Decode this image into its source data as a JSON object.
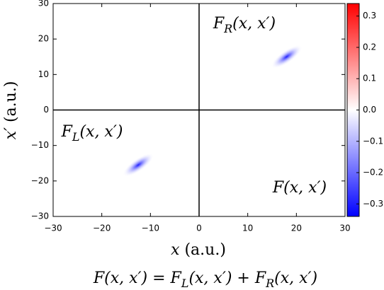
{
  "chart_data": {
    "type": "heatmap",
    "xlabel": [
      "x",
      {
        "roman": " (a.u.)"
      }
    ],
    "ylabel": [
      "x′",
      {
        "roman": " (a.u.)"
      }
    ],
    "caption": [
      "F(x, x′) = F",
      {
        "sub": "L"
      },
      "(x, x′) + F",
      {
        "sub": "R"
      },
      "(x, x′)"
    ],
    "annotations": [
      {
        "parts": [
          "F",
          {
            "sub": "R"
          },
          "(x, x′)"
        ]
      },
      {
        "parts": [
          "F",
          {
            "sub": "L"
          },
          "(x, x′)"
        ]
      },
      {
        "parts": [
          "F(x, x′)"
        ]
      }
    ],
    "blobs": [
      {
        "x": 18,
        "y": 15,
        "value": -0.3
      },
      {
        "x": -12.5,
        "y": -15.5,
        "value": -0.3
      }
    ],
    "xlim": [
      -30,
      30
    ],
    "ylim": [
      -30,
      30
    ],
    "xticks": [
      {
        "value": -30,
        "label": "−30"
      },
      {
        "value": -20,
        "label": "−20"
      },
      {
        "value": -10,
        "label": "−10"
      },
      0,
      10,
      20,
      30
    ],
    "yticks": [
      {
        "value": -30,
        "label": "−30"
      },
      {
        "value": -20,
        "label": "−20"
      },
      {
        "value": -10,
        "label": "−10"
      },
      0,
      10,
      20,
      30
    ],
    "clim": [
      -0.34,
      0.34
    ],
    "cticks": [
      {
        "value": -0.3,
        "label": "−0.3"
      },
      {
        "value": -0.2,
        "label": "−0.2"
      },
      {
        "value": -0.1,
        "label": "−0.1"
      },
      {
        "value": 0,
        "label": "0.0"
      },
      0.1,
      0.2,
      0.3
    ],
    "colormap": [
      "#0000ff",
      "#ffffff",
      "#ff0000"
    ]
  }
}
